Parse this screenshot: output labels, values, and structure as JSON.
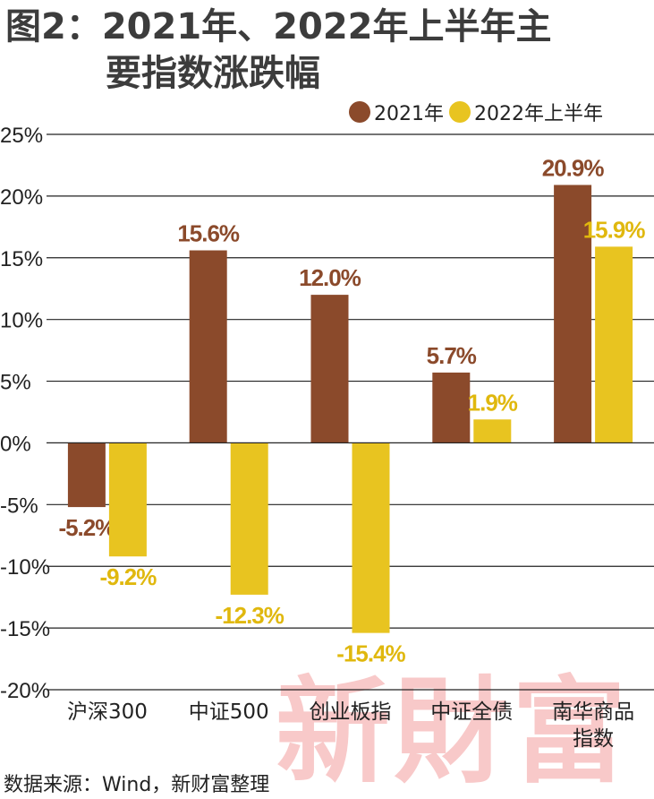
{
  "title": {
    "line1": "图2：2021年、2022年上半年主",
    "line2": "要指数涨跌幅"
  },
  "legend": [
    {
      "label": "2021年",
      "color": "#8b4a2b"
    },
    {
      "label": "2022年上半年",
      "color": "#e8c420"
    }
  ],
  "source": "数据来源：Wind，新财富整理",
  "watermark": "新財富",
  "chart_data": {
    "type": "bar",
    "categories": [
      [
        "沪深300"
      ],
      [
        "中证500"
      ],
      [
        "创业板指"
      ],
      [
        "中证全债"
      ],
      [
        "南华商品",
        "指数"
      ]
    ],
    "series": [
      {
        "name": "2021年",
        "color": "#8b4a2b",
        "label_color": "#8b4a2b",
        "values": [
          -5.2,
          15.6,
          12.0,
          5.7,
          20.9
        ]
      },
      {
        "name": "2022年上半年",
        "color": "#e8c420",
        "label_color": "#e0b80e",
        "values": [
          -9.2,
          -12.3,
          -15.4,
          1.9,
          15.9
        ]
      }
    ],
    "value_labels": [
      [
        "-5.2%",
        "15.6%",
        "12.0%",
        "5.7%",
        "20.9%"
      ],
      [
        "-9.2%",
        "-12.3%",
        "-15.4%",
        "1.9%",
        "15.9%"
      ]
    ],
    "ytick_labels": [
      "25%",
      "20%",
      "15%",
      "10%",
      "5%",
      "0%",
      "-5%",
      "-10%",
      "-15%",
      "-20%"
    ],
    "yticks": [
      25,
      20,
      15,
      10,
      5,
      0,
      -5,
      -10,
      -15,
      -20
    ],
    "ylim": [
      -20,
      25
    ],
    "grid": true,
    "legend_position": "top-right"
  }
}
